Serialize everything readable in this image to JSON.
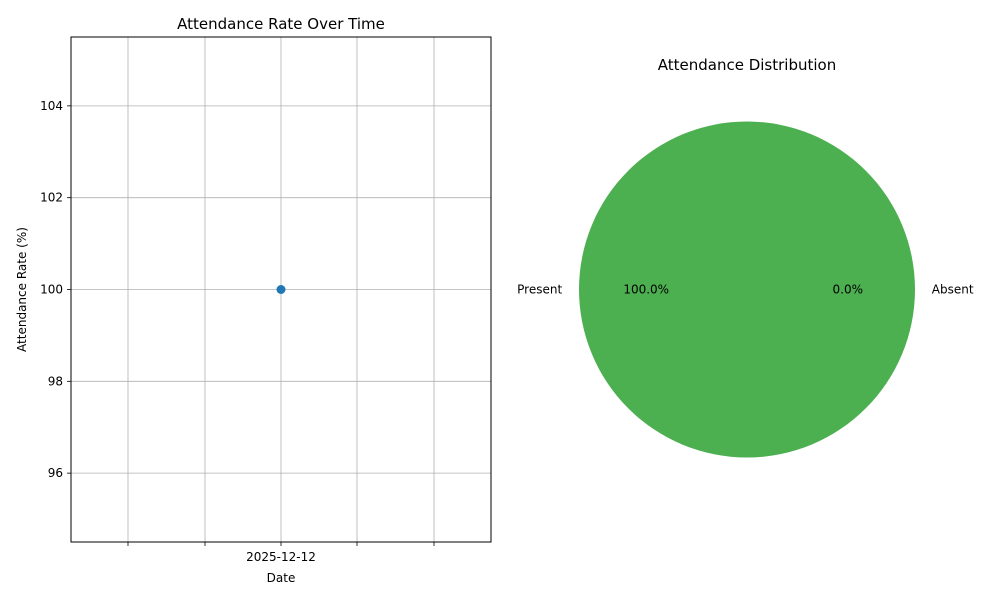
{
  "chart_data": [
    {
      "type": "line",
      "title": "Attendance Rate Over Time",
      "xlabel": "Date",
      "ylabel": "Attendance Rate (%)",
      "x": [
        "2025-12-12"
      ],
      "series": [
        {
          "values": [
            100
          ],
          "color": "#1f77b4",
          "marker": "circle"
        }
      ],
      "ylim": [
        94.5,
        105.5
      ],
      "yticks": [
        96,
        98,
        100,
        102,
        104
      ],
      "xticks": [
        "",
        "",
        "2025-12-12",
        "",
        ""
      ],
      "grid": true
    },
    {
      "type": "pie",
      "title": "Attendance Distribution",
      "slices": [
        {
          "label": "Present",
          "value": 100.0,
          "pct_label": "100.0%",
          "color": "#4caf50"
        },
        {
          "label": "Absent",
          "value": 0.0,
          "pct_label": "0.0%",
          "color": "#f44336"
        }
      ]
    }
  ]
}
